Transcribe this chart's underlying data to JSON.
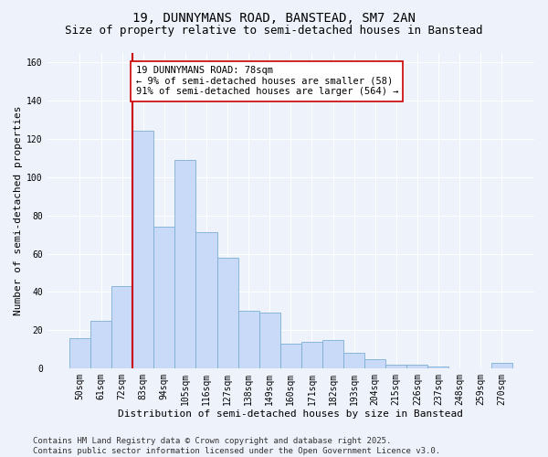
{
  "title_line1": "19, DUNNYMANS ROAD, BANSTEAD, SM7 2AN",
  "title_line2": "Size of property relative to semi-detached houses in Banstead",
  "xlabel": "Distribution of semi-detached houses by size in Banstead",
  "ylabel": "Number of semi-detached properties",
  "bar_labels": [
    "50sqm",
    "61sqm",
    "72sqm",
    "83sqm",
    "94sqm",
    "105sqm",
    "116sqm",
    "127sqm",
    "138sqm",
    "149sqm",
    "160sqm",
    "171sqm",
    "182sqm",
    "193sqm",
    "204sqm",
    "215sqm",
    "226sqm",
    "237sqm",
    "248sqm",
    "259sqm",
    "270sqm"
  ],
  "bar_values": [
    16,
    25,
    43,
    124,
    74,
    109,
    71,
    58,
    30,
    29,
    13,
    14,
    15,
    8,
    5,
    2,
    2,
    1,
    0,
    0,
    3
  ],
  "bar_color": "#c9daf8",
  "bar_edge_color": "#7bafd4",
  "vline_x": 2.5,
  "vline_color": "#cc0000",
  "annotation_text": "19 DUNNYMANS ROAD: 78sqm\n← 9% of semi-detached houses are smaller (58)\n91% of semi-detached houses are larger (564) →",
  "annotation_box_color": "#ffffff",
  "annotation_box_edge": "#cc0000",
  "ylim": [
    0,
    165
  ],
  "yticks": [
    0,
    20,
    40,
    60,
    80,
    100,
    120,
    140,
    160
  ],
  "footer_text": "Contains HM Land Registry data © Crown copyright and database right 2025.\nContains public sector information licensed under the Open Government Licence v3.0.",
  "background_color": "#eef2fb",
  "grid_color": "#ffffff",
  "title_fontsize": 10,
  "subtitle_fontsize": 9,
  "axis_label_fontsize": 8,
  "tick_fontsize": 7,
  "annotation_fontsize": 7.5,
  "footer_fontsize": 6.5
}
